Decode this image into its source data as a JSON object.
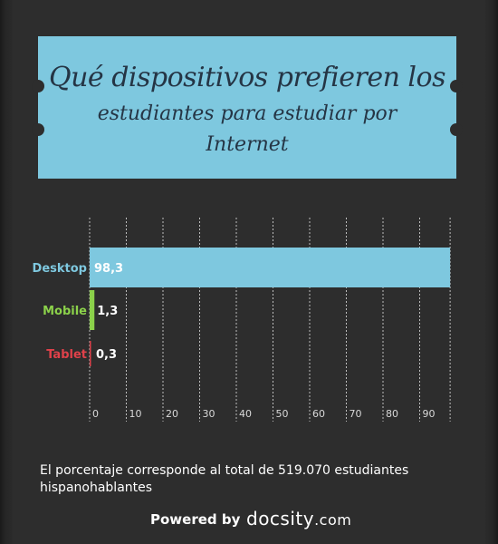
{
  "title_line1": "Qué dispositivos prefieren los",
  "title_line2": "estudiantes para estudiar por",
  "title_line3": "Internet",
  "footnote": "El porcentaje corresponde al total de 519.070 estudiantes hispanohablantes",
  "powered_by": "Powered by",
  "logo_text": "docsity",
  "logo_suffix": ".com",
  "colors": {
    "banner": "#7ec8df",
    "desktop": "#7ec8df",
    "mobile": "#8bd14a",
    "tablet": "#e0414a",
    "grid": "#bdbdbd",
    "axis_text": "#d8d8d8"
  },
  "chart_data": {
    "type": "bar",
    "orientation": "horizontal",
    "categories": [
      "Desktop",
      "Mobile",
      "Tablet"
    ],
    "values": [
      98.3,
      1.3,
      0.3
    ],
    "value_labels": [
      "98,3",
      "1,3",
      "0,3"
    ],
    "x_ticks": [
      0,
      10,
      20,
      30,
      40,
      50,
      60,
      70,
      80,
      90
    ],
    "xlim": [
      0,
      98.3
    ],
    "grid": true,
    "grid_style": "dashed"
  }
}
